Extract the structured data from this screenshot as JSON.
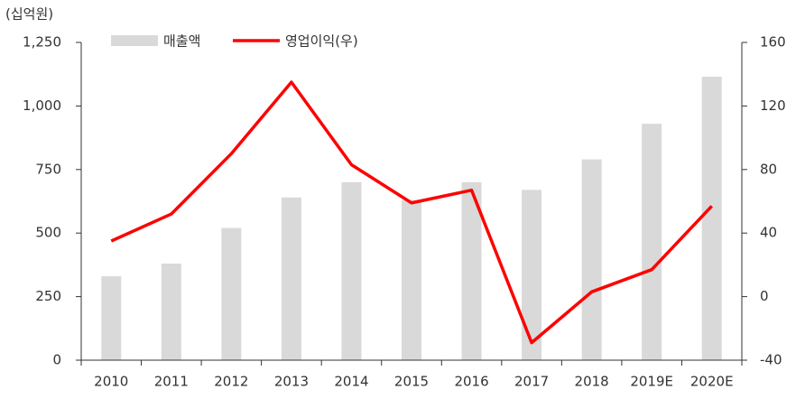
{
  "chart_data": {
    "type": "bar_line",
    "unit_label": "(십억원)",
    "categories": [
      "2010",
      "2011",
      "2012",
      "2013",
      "2014",
      "2015",
      "2016",
      "2017",
      "2018",
      "2019E",
      "2020E"
    ],
    "series": [
      {
        "name": "매출액",
        "color": "#d9d9d9",
        "type": "bar",
        "axis": "y",
        "values": [
          330,
          380,
          520,
          640,
          700,
          630,
          700,
          670,
          790,
          930,
          1115
        ]
      },
      {
        "name": "영업이익(우)",
        "color": "#ff0000",
        "type": "line",
        "axis": "y2",
        "values": [
          35,
          52,
          90,
          135,
          83,
          59,
          67,
          -29,
          3,
          17,
          57
        ]
      }
    ],
    "ylim": [
      0,
      1250
    ],
    "yticks": [
      0,
      250,
      500,
      750,
      {
        "value": 1000,
        "label": "1,000"
      },
      {
        "value": 1250,
        "label": "1,250"
      }
    ],
    "y2lim": [
      -40,
      160
    ],
    "y2ticks": [
      -40,
      0,
      40,
      80,
      120,
      160
    ],
    "grid": false,
    "legend": "top"
  }
}
